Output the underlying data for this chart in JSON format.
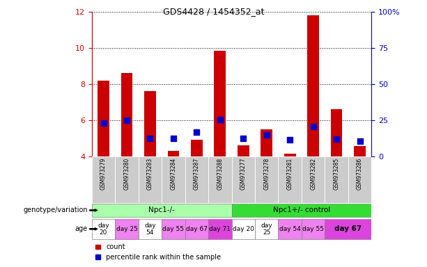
{
  "title": "GDS4428 / 1454352_at",
  "samples": [
    "GSM973279",
    "GSM973280",
    "GSM973283",
    "GSM973284",
    "GSM973287",
    "GSM973288",
    "GSM973277",
    "GSM973278",
    "GSM973281",
    "GSM973282",
    "GSM973285",
    "GSM973286"
  ],
  "counts": [
    8.2,
    8.6,
    7.6,
    4.3,
    4.9,
    9.85,
    4.6,
    5.5,
    4.15,
    11.8,
    6.6,
    4.55
  ],
  "percentile_values": [
    5.85,
    6.0,
    5.0,
    5.0,
    5.35,
    6.05,
    5.0,
    5.2,
    4.9,
    5.65,
    4.95,
    4.85
  ],
  "y_min": 4,
  "y_max": 12,
  "y_ticks_left": [
    4,
    6,
    8,
    10,
    12
  ],
  "y_ticks_right": [
    0,
    25,
    50,
    75,
    100
  ],
  "genotype_groups": [
    {
      "label": "Npc1-/-",
      "start": 0,
      "end": 6,
      "color": "#aaffaa"
    },
    {
      "label": "Npc1+/- control",
      "start": 6,
      "end": 12,
      "color": "#33dd33"
    }
  ],
  "age_spans": [
    {
      "label": "day\n20",
      "start": 0,
      "end": 1,
      "color": "#ffffff"
    },
    {
      "label": "day 25",
      "start": 1,
      "end": 2,
      "color": "#ee82ee"
    },
    {
      "label": "day\n54",
      "start": 2,
      "end": 3,
      "color": "#ffffff"
    },
    {
      "label": "day 55",
      "start": 3,
      "end": 4,
      "color": "#ee82ee"
    },
    {
      "label": "day 67",
      "start": 4,
      "end": 5,
      "color": "#ee82ee"
    },
    {
      "label": "day 71",
      "start": 5,
      "end": 6,
      "color": "#dd44dd"
    },
    {
      "label": "day 20",
      "start": 6,
      "end": 7,
      "color": "#ffffff"
    },
    {
      "label": "day\n25",
      "start": 7,
      "end": 8,
      "color": "#ffffff"
    },
    {
      "label": "day 54",
      "start": 8,
      "end": 9,
      "color": "#ee82ee"
    },
    {
      "label": "day 55",
      "start": 9,
      "end": 10,
      "color": "#ee82ee"
    },
    {
      "label": "day 67",
      "start": 10,
      "end": 12,
      "color": "#dd44dd"
    }
  ],
  "bar_color": "#cc0000",
  "dot_color": "#0000cc",
  "bar_width": 0.5,
  "dot_size": 30,
  "left_label_color": "#cc0000",
  "right_label_color": "#0000cc",
  "genotype_label": "genotype/variation",
  "age_label": "age",
  "sample_bg_color": "#cccccc"
}
